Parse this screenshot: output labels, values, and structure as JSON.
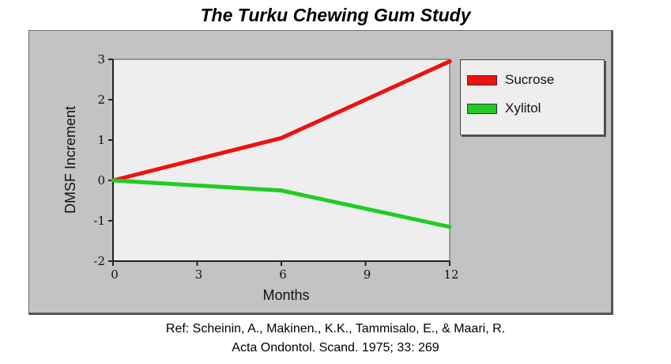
{
  "title": "The Turku Chewing Gum Study",
  "reference": {
    "line1": "Ref: Scheinin, A., Makinen., K.K., Tammisalo, E., & Maari, R.",
    "line2": "Acta Ondontol. Scand. 1975; 33: 269"
  },
  "chart_data": {
    "type": "line",
    "title": "The Turku Chewing Gum Study",
    "xlabel": "Months",
    "ylabel": "DMSF Increment",
    "x": [
      0,
      6,
      12
    ],
    "xticks": [
      0,
      3,
      6,
      9,
      12
    ],
    "yticks": [
      3,
      2,
      1,
      0,
      -1,
      -2
    ],
    "xlim": [
      0,
      12
    ],
    "ylim": [
      -2,
      3
    ],
    "grid": false,
    "legend_position": "right",
    "series": [
      {
        "name": "Sucrose",
        "color": "#ee1111",
        "values": [
          0,
          1.05,
          2.95
        ]
      },
      {
        "name": "Xylitol",
        "color": "#22cc22",
        "values": [
          0,
          -0.25,
          -1.15
        ]
      }
    ]
  },
  "colors": {
    "panel": "#c3c3c3",
    "plot_area": "#eeeeee"
  }
}
